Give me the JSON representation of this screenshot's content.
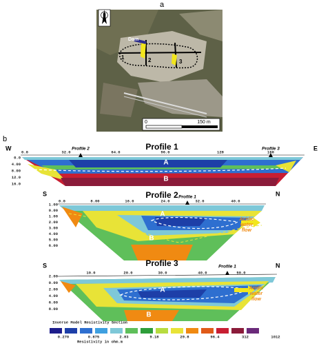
{
  "panel_a": {
    "label": "a",
    "north": "N",
    "dam": "Dam",
    "lines": [
      "1",
      "2",
      "3"
    ],
    "scale": [
      "0",
      "150 m"
    ]
  },
  "panel_b": {
    "label": "b",
    "profile1": {
      "title": "Profile 1",
      "west": "W",
      "east": "E",
      "x_ticks": [
        "0.0",
        "32.0",
        "64.0",
        "96.0",
        "128",
        "160"
      ],
      "depth_ticks": [
        "0.0",
        "4.00",
        "8.00",
        "12.0",
        "16.0"
      ],
      "markers": [
        "Profile 2",
        "Profile 3"
      ],
      "zones": [
        "A",
        "B"
      ]
    },
    "profile2": {
      "title": "Profile 2",
      "south": "S",
      "north": "N",
      "x_ticks": [
        "0.0",
        "8.00",
        "16.0",
        "24.0",
        "32.0",
        "40.0"
      ],
      "depth_ticks": [
        "1.00",
        "0.00",
        "1.00",
        "2.00",
        "3.00",
        "4.00",
        "5.00",
        "6.00"
      ],
      "marker": "Profile 1",
      "zones": [
        "A",
        "B"
      ],
      "flow": [
        "Acidic",
        "water",
        "flow"
      ]
    },
    "profile3": {
      "title": "Profile 3",
      "south": "S",
      "north": "N",
      "x_ticks": [
        "10.0",
        "20.0",
        "30.0",
        "40.0",
        "50.0"
      ],
      "depth_ticks": [
        "2.00",
        "0.00",
        "2.00",
        "4.00",
        "6.00",
        "8.00"
      ],
      "marker": "Profile 1",
      "zones": [
        "A",
        "B"
      ],
      "flow": [
        "Acidic",
        "water",
        "flow"
      ]
    },
    "legend": {
      "title": "Inverse Model Resistivity Section",
      "values": [
        "0.270",
        "0.875",
        "2.83",
        "9.18",
        "29.8",
        "96.4",
        "312",
        "1012"
      ],
      "unit": "Resistivity in ohm.m"
    }
  }
}
